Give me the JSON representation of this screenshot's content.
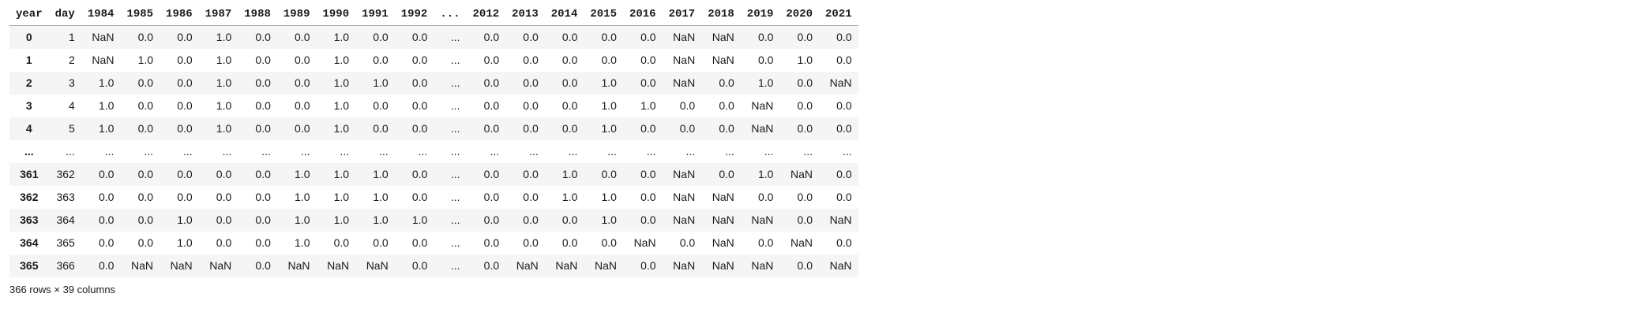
{
  "dataframe": {
    "columns": [
      "year",
      "day",
      "1984",
      "1985",
      "1986",
      "1987",
      "1988",
      "1989",
      "1990",
      "1991",
      "1992",
      "...",
      "2012",
      "2013",
      "2014",
      "2015",
      "2016",
      "2017",
      "2018",
      "2019",
      "2020",
      "2021"
    ],
    "rows": [
      {
        "index": "0",
        "cells": [
          "1",
          "NaN",
          "0.0",
          "0.0",
          "1.0",
          "0.0",
          "0.0",
          "1.0",
          "0.0",
          "0.0",
          "...",
          "0.0",
          "0.0",
          "0.0",
          "0.0",
          "0.0",
          "NaN",
          "NaN",
          "0.0",
          "0.0",
          "0.0"
        ]
      },
      {
        "index": "1",
        "cells": [
          "2",
          "NaN",
          "1.0",
          "0.0",
          "1.0",
          "0.0",
          "0.0",
          "1.0",
          "0.0",
          "0.0",
          "...",
          "0.0",
          "0.0",
          "0.0",
          "0.0",
          "0.0",
          "NaN",
          "NaN",
          "0.0",
          "1.0",
          "0.0"
        ]
      },
      {
        "index": "2",
        "cells": [
          "3",
          "1.0",
          "0.0",
          "0.0",
          "1.0",
          "0.0",
          "0.0",
          "1.0",
          "1.0",
          "0.0",
          "...",
          "0.0",
          "0.0",
          "0.0",
          "1.0",
          "0.0",
          "NaN",
          "0.0",
          "1.0",
          "0.0",
          "NaN"
        ]
      },
      {
        "index": "3",
        "cells": [
          "4",
          "1.0",
          "0.0",
          "0.0",
          "1.0",
          "0.0",
          "0.0",
          "1.0",
          "0.0",
          "0.0",
          "...",
          "0.0",
          "0.0",
          "0.0",
          "1.0",
          "1.0",
          "0.0",
          "0.0",
          "NaN",
          "0.0",
          "0.0"
        ]
      },
      {
        "index": "4",
        "cells": [
          "5",
          "1.0",
          "0.0",
          "0.0",
          "1.0",
          "0.0",
          "0.0",
          "1.0",
          "0.0",
          "0.0",
          "...",
          "0.0",
          "0.0",
          "0.0",
          "1.0",
          "0.0",
          "0.0",
          "0.0",
          "NaN",
          "0.0",
          "0.0"
        ]
      },
      {
        "index": "...",
        "cells": [
          "...",
          "...",
          "...",
          "...",
          "...",
          "...",
          "...",
          "...",
          "...",
          "...",
          "...",
          "...",
          "...",
          "...",
          "...",
          "...",
          "...",
          "...",
          "...",
          "...",
          "..."
        ]
      },
      {
        "index": "361",
        "cells": [
          "362",
          "0.0",
          "0.0",
          "0.0",
          "0.0",
          "0.0",
          "1.0",
          "1.0",
          "1.0",
          "0.0",
          "...",
          "0.0",
          "0.0",
          "1.0",
          "0.0",
          "0.0",
          "NaN",
          "0.0",
          "1.0",
          "NaN",
          "0.0"
        ]
      },
      {
        "index": "362",
        "cells": [
          "363",
          "0.0",
          "0.0",
          "0.0",
          "0.0",
          "0.0",
          "1.0",
          "1.0",
          "1.0",
          "0.0",
          "...",
          "0.0",
          "0.0",
          "1.0",
          "1.0",
          "0.0",
          "NaN",
          "NaN",
          "0.0",
          "0.0",
          "0.0"
        ]
      },
      {
        "index": "363",
        "cells": [
          "364",
          "0.0",
          "0.0",
          "1.0",
          "0.0",
          "0.0",
          "1.0",
          "1.0",
          "1.0",
          "1.0",
          "...",
          "0.0",
          "0.0",
          "0.0",
          "1.0",
          "0.0",
          "NaN",
          "NaN",
          "NaN",
          "0.0",
          "NaN"
        ]
      },
      {
        "index": "364",
        "cells": [
          "365",
          "0.0",
          "0.0",
          "1.0",
          "0.0",
          "0.0",
          "1.0",
          "0.0",
          "0.0",
          "0.0",
          "...",
          "0.0",
          "0.0",
          "0.0",
          "0.0",
          "NaN",
          "0.0",
          "NaN",
          "0.0",
          "NaN",
          "0.0"
        ]
      },
      {
        "index": "365",
        "cells": [
          "366",
          "0.0",
          "NaN",
          "NaN",
          "NaN",
          "0.0",
          "NaN",
          "NaN",
          "NaN",
          "0.0",
          "...",
          "0.0",
          "NaN",
          "NaN",
          "NaN",
          "0.0",
          "NaN",
          "NaN",
          "NaN",
          "0.0",
          "NaN"
        ]
      }
    ],
    "footer": "366 rows × 39 columns"
  },
  "colors": {
    "row_stripe": "#f5f5f5",
    "header_border": "#a6a6a6",
    "text": "#1a1a1a",
    "background": "#ffffff"
  }
}
